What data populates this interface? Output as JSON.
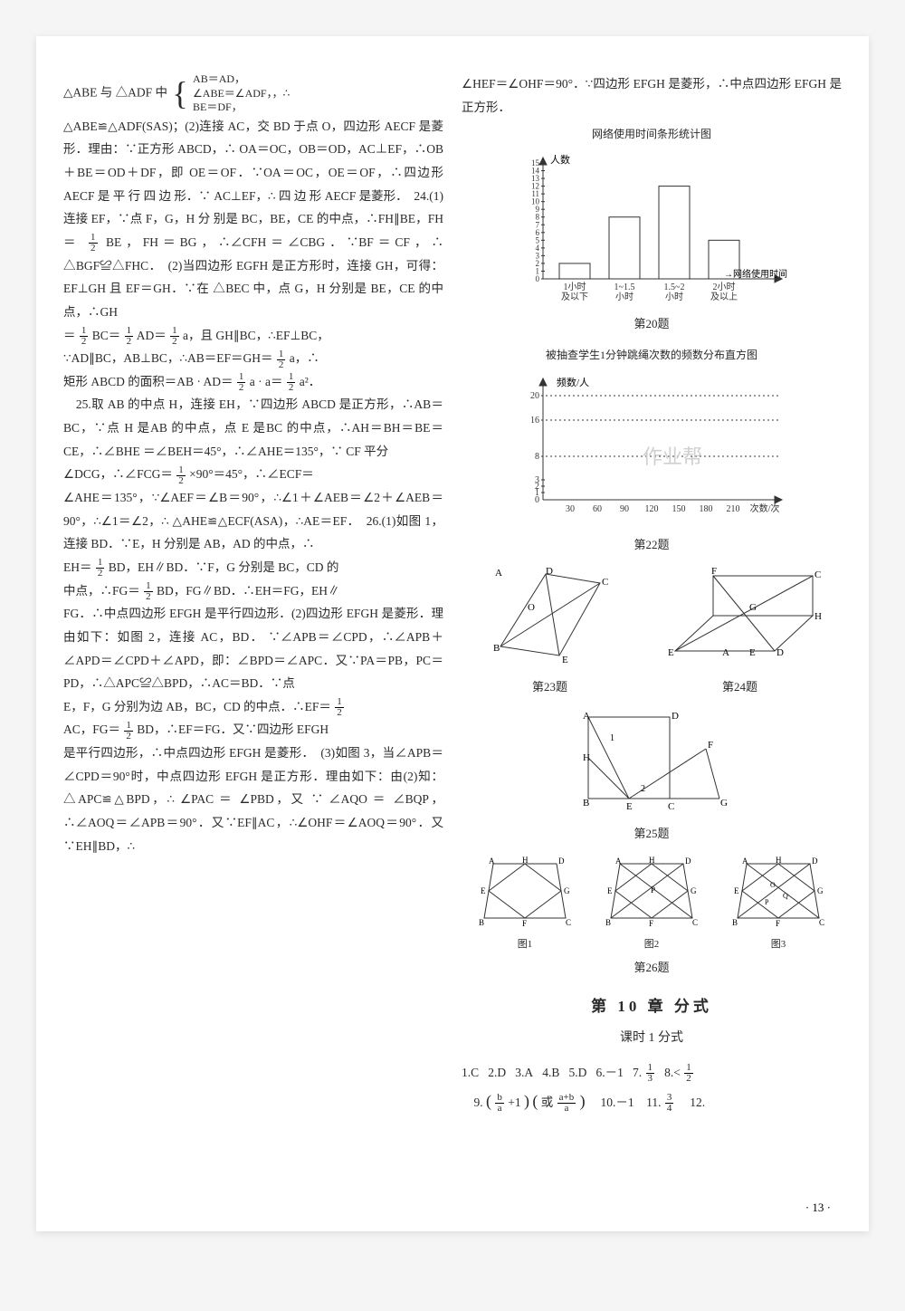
{
  "col1": {
    "l1a": "△ABE 与 △ADF 中",
    "braceLines": [
      "AB＝AD，",
      "∠ABE＝∠ADF，，∴",
      "BE＝DF，"
    ],
    "l2": "△ABE≌△ADF(SAS)；(2)连接 AC，交 BD 于点 O，四边形 AECF 是菱形．理由：∵正方形 ABCD，∴ OA＝OC，OB＝OD，AC⊥EF，∴OB＋BE＝OD＋DF，即 OE＝OF．∵OA＝OC，OE＝OF，∴四边形 AECF 是 平 行 四 边 形．∵ AC⊥EF，∴ 四 边 形 AECF 是菱形．　24.(1)连接 EF，∵点 F，G，H 分",
    "l3": "别是 BC，BE，CE 的中点，∴FH∥BE，FH＝",
    "l4": "BE，FH＝BG，∴∠CFH＝∠CBG．∵BF＝CF，∴ △BGF≌△FHC．　(2)当四边形 EGFH 是正方形时，连接 GH，可得：EF⊥GH 且 EF＝GH．∵在 △BEC 中，点 G，H 分别是 BE，CE 的中点，∴GH",
    "l5a": "＝",
    "l5b": "BC＝",
    "l5c": "AD＝",
    "l5d": "a，且 GH∥BC，∴EF⊥BC，",
    "l6a": "∵AD∥BC，AB⊥BC，∴AB＝EF＝GH＝",
    "l6b": "a，∴",
    "l7a": "矩形 ABCD 的面积＝AB · AD＝",
    "l7b": "a · a＝",
    "l7c": "a²．",
    "l8": "　25.取 AB 的中点 H，连接 EH，∵四边形 ABCD 是正方形，∴AB＝BC，∵点 H 是AB 的中点，点 E 是BC 的中点，∴AH＝BH＝BE＝CE，∴∠BHE ＝∠BEH＝45°，∴∠AHE＝135°，∵ CF 平分",
    "l9a": "∠DCG，∴∠FCG＝",
    "l9b": "×90°＝45°，∴∠ECF＝",
    "l10": "∠AHE＝135°，∵∠AEF＝∠B＝90°，∴∠1＋∠AEB＝∠2＋∠AEB＝90°，∴∠1＝∠2，∴ △AHE≌△ECF(ASA)，∴AE＝EF．　26.(1)如图 1，连接 BD．∵E，H 分别是 AB，AD 的中点，∴",
    "l11a": "EH＝",
    "l11b": "BD，EH∥BD．∵F，G 分别是 BC，CD 的",
    "l12a": "中点，∴FG＝",
    "l12b": "BD，FG∥BD．∴EH＝FG，EH∥",
    "l13": "FG．∴中点四边形 EFGH 是平行四边形．(2)四边形 EFGH 是菱形．理由如下：如图 2，连接 AC，BD． ∵∠APB＝∠CPD，∴∠APB＋∠APD＝∠CPD＋∠APD，即：∠BPD＝∠APC．又∵PA＝PB，PC＝PD，∴△APC≌△BPD，∴AC＝BD．∵点",
    "l14a": "E，F，G 分别为边 AB，BC，CD 的中点．∴EF＝",
    "l15a": "AC，FG＝",
    "l15b": "BD，∴EF＝FG．又∵四边形 EFGH",
    "l16": "是平行四边形，∴中点四边形 EFGH 是菱形．　(3)如图 3，当∠APB＝∠CPD＝90°时，中点四边形 EFGH 是正方形．理由如下：由(2)知：△APC≌△BPD，∴ ∠PAC ＝ ∠PBD，又 ∵ ∠AQO ＝ ∠BQP，∴∠AOQ＝∠APB＝90°．又∵EF∥AC，∴∠OHF＝∠AOQ＝90°．又∵EH∥BD，∴"
  },
  "col2": {
    "top": "∠HEF＝∠OHF＝90°．∵四边形 EFGH 是菱形，∴中点四边形 EFGH 是正方形．",
    "chart1": {
      "title": "网络使用时间条形统计图",
      "y_label": "人数",
      "x_label": "网络使用时间",
      "y_ticks": [
        "0",
        "1",
        "2",
        "3",
        "4",
        "5",
        "6",
        "7",
        "8",
        "9",
        "10",
        "11",
        "12",
        "13",
        "14",
        "15"
      ],
      "categories": [
        "1小时\n及以下",
        "1~1.5\n小时",
        "1.5~2\n小时",
        "2小时\n及以上"
      ],
      "values": [
        2,
        8,
        12,
        5
      ],
      "bar_color": "#ffffff",
      "axis_color": "#333333",
      "label": "第20题"
    },
    "chart2": {
      "title": "被抽查学生1分钟跳绳次数的频数分布直方图",
      "y_label": "频数/人",
      "x_label": "次数/次",
      "x_ticks": [
        "0",
        "30",
        "60",
        "90",
        "120",
        "150",
        "180",
        "210"
      ],
      "y_ticks": [
        "0",
        "1",
        "2",
        "3",
        "8",
        "16",
        "20"
      ],
      "label": "第22题",
      "watermark": "作业帮"
    },
    "fig23": {
      "A": "A",
      "B": "B",
      "C": "C",
      "D": "D",
      "E": "E",
      "O": "O",
      "label": "第23题"
    },
    "fig24": {
      "A": "A",
      "D": "D",
      "E1": "E",
      "E2": "E",
      "F": "F",
      "G": "G",
      "H": "H",
      "C": "C",
      "label": "第24题"
    },
    "fig25": {
      "A": "A",
      "B": "B",
      "C": "C",
      "D": "D",
      "E": "E",
      "F": "F",
      "G": "G",
      "H": "H",
      "one": "1",
      "two": "2",
      "label": "第25题"
    },
    "fig26": {
      "labels": [
        "图1",
        "图2",
        "图3"
      ],
      "nodes": [
        "A",
        "B",
        "C",
        "D",
        "E",
        "F",
        "G",
        "H",
        "P",
        "O",
        "Q"
      ],
      "label": "第26题"
    },
    "chapterTitle": "第 10 章  分式",
    "lessonTitle": "课时 1  分式",
    "answers": {
      "a1": "1.C",
      "a2": "2.D",
      "a3": "3.A",
      "a4": "4.B",
      "a5": "5.D",
      "a6": "6.－1",
      "a7": "7.",
      "a7frac_num": "1",
      "a7frac_den": "3",
      "a8": "8.<",
      "a8frac_num": "1",
      "a8frac_den": "2",
      "a9": "9.",
      "a9expr_a": "b",
      "a9expr_b": "a",
      "a9expr_c": "a+b",
      "a9expr_d": "a",
      "a9or": "或",
      "a10": "10.－1",
      "a11": "11.",
      "a11frac_num": "3",
      "a11frac_den": "4",
      "a12": "12."
    }
  },
  "pageNum": "· 13 ·"
}
